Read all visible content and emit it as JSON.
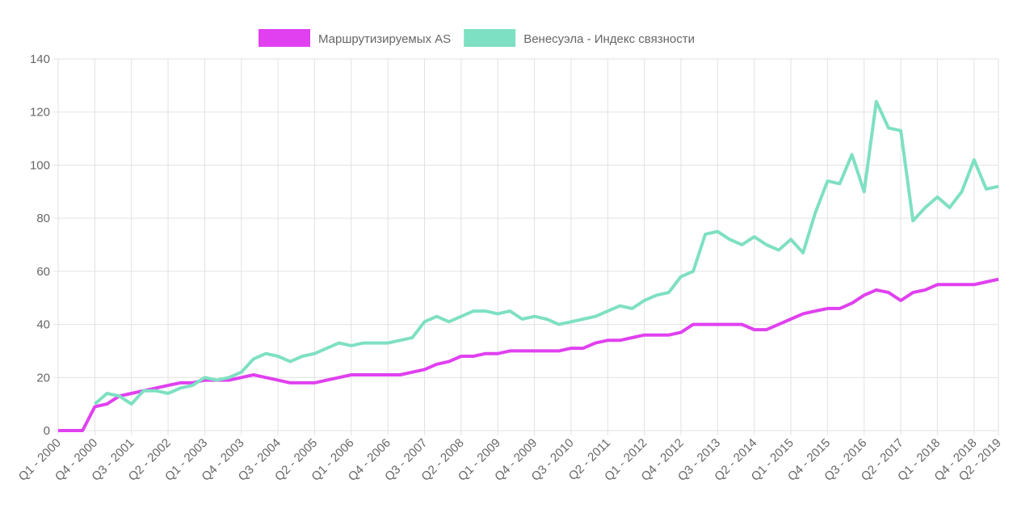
{
  "chart_data": {
    "type": "line",
    "categories": [
      "Q1 - 2000",
      null,
      null,
      "Q4 - 2000",
      null,
      null,
      "Q3 - 2001",
      null,
      null,
      "Q2 - 2002",
      null,
      null,
      "Q1 - 2003",
      null,
      null,
      "Q4 - 2003",
      null,
      null,
      "Q3 - 2004",
      null,
      null,
      "Q2 - 2005",
      null,
      null,
      "Q1 - 2006",
      null,
      null,
      "Q4 - 2006",
      null,
      null,
      "Q3 - 2007",
      null,
      null,
      "Q2 - 2008",
      null,
      null,
      "Q1 - 2009",
      null,
      null,
      "Q4 - 2009",
      null,
      null,
      "Q3 - 2010",
      null,
      null,
      "Q2 - 2011",
      null,
      null,
      "Q1 - 2012",
      null,
      null,
      "Q4 - 2012",
      null,
      null,
      "Q3 - 2013",
      null,
      null,
      "Q2 - 2014",
      null,
      null,
      "Q1 - 2015",
      null,
      null,
      "Q4 - 2015",
      null,
      null,
      "Q3 - 2016",
      null,
      null,
      "Q2 - 2017",
      null,
      null,
      "Q1 - 2018",
      null,
      null,
      "Q4 - 2018",
      null,
      "Q2 - 2019"
    ],
    "series": [
      {
        "name": "Маршрутизируемых AS",
        "color": "#e040f0",
        "values": [
          0,
          0,
          0,
          9,
          10,
          13,
          14,
          15,
          16,
          17,
          18,
          18,
          19,
          19,
          19,
          20,
          21,
          20,
          19,
          18,
          18,
          18,
          19,
          20,
          21,
          21,
          21,
          21,
          21,
          22,
          23,
          25,
          26,
          28,
          28,
          29,
          29,
          30,
          30,
          30,
          30,
          30,
          31,
          31,
          33,
          34,
          34,
          35,
          36,
          36,
          36,
          37,
          40,
          40,
          40,
          40,
          40,
          38,
          38,
          40,
          42,
          44,
          45,
          46,
          46,
          48,
          51,
          53,
          52,
          49,
          52,
          53,
          55,
          55,
          55,
          55,
          56,
          57
        ]
      },
      {
        "name": "Венесуэла - Индекс связности",
        "color": "#7ee0c2",
        "values": [
          null,
          null,
          null,
          10,
          14,
          13,
          10,
          15,
          15,
          14,
          16,
          17,
          20,
          19,
          20,
          22,
          27,
          29,
          28,
          26,
          28,
          29,
          31,
          33,
          32,
          33,
          33,
          33,
          34,
          35,
          41,
          43,
          41,
          43,
          45,
          45,
          44,
          45,
          42,
          43,
          42,
          40,
          41,
          42,
          43,
          45,
          47,
          46,
          49,
          51,
          52,
          58,
          60,
          74,
          75,
          72,
          70,
          73,
          70,
          68,
          72,
          67,
          82,
          94,
          93,
          104,
          90,
          124,
          114,
          113,
          79,
          84,
          88,
          84,
          90,
          102,
          91,
          92
        ]
      }
    ],
    "ylim": [
      0,
      140
    ],
    "yticks": [
      0,
      20,
      40,
      60,
      80,
      100,
      120,
      140
    ],
    "grid": true,
    "legend": "top"
  }
}
